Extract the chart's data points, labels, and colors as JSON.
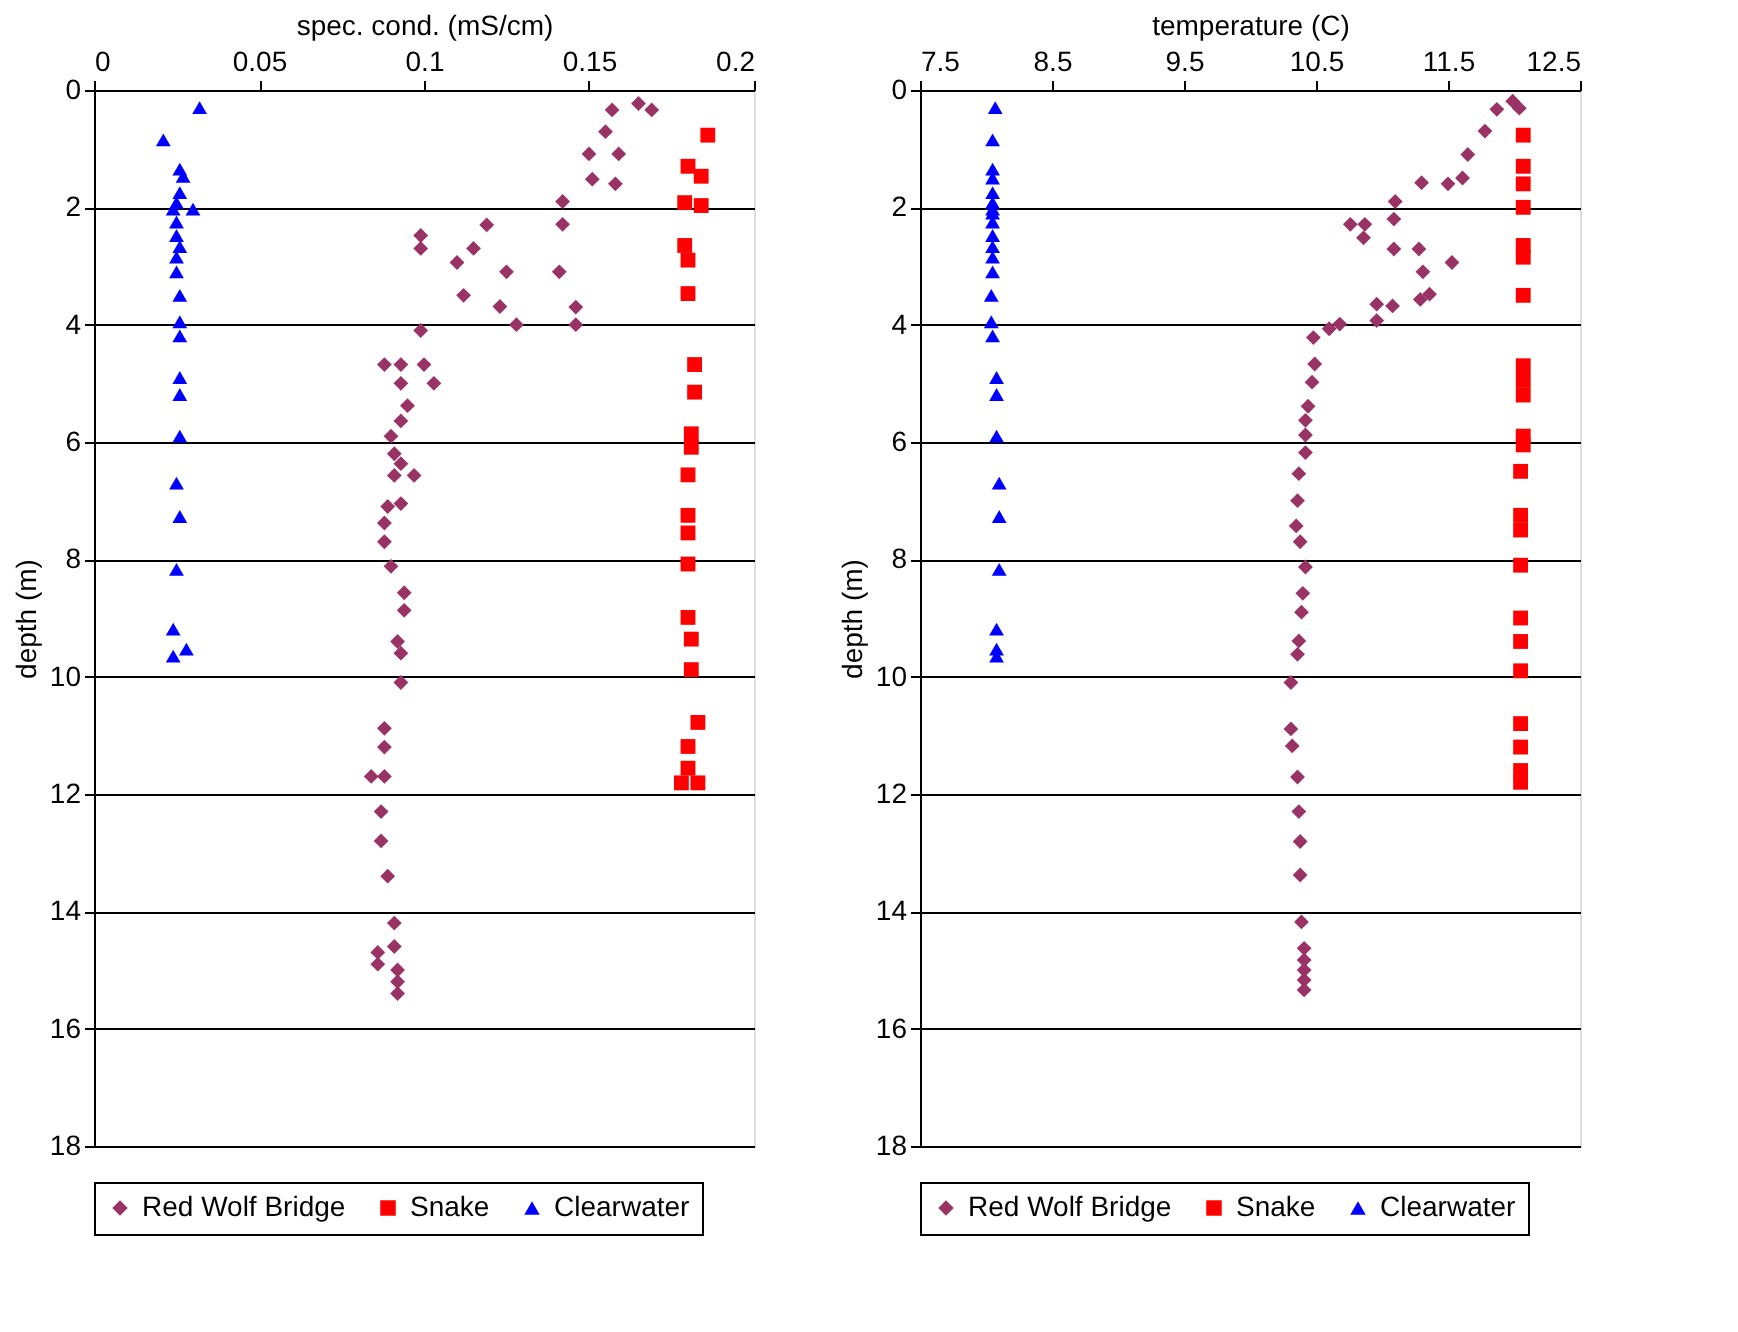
{
  "chart_data": [
    {
      "type": "scatter",
      "xlabel": "spec. cond. (mS/cm)",
      "ylabel": "depth (m)",
      "xlim": [
        0,
        0.2
      ],
      "xticks": [
        0,
        0.05,
        0.1,
        0.15,
        0.2
      ],
      "ylim": [
        18,
        0
      ],
      "yticks": [
        0,
        2,
        4,
        6,
        8,
        10,
        12,
        14,
        16,
        18
      ],
      "grid": "y",
      "legend": "bottom",
      "series": [
        {
          "name": "Red Wolf Bridge",
          "color": "#993366",
          "marker": "diamond",
          "x": [
            0.165,
            0.157,
            0.169,
            0.155,
            0.15,
            0.159,
            0.151,
            0.158,
            0.142,
            0.142,
            0.119,
            0.099,
            0.099,
            0.115,
            0.11,
            0.125,
            0.141,
            0.112,
            0.123,
            0.128,
            0.146,
            0.146,
            0.099,
            0.088,
            0.093,
            0.1,
            0.093,
            0.103,
            0.095,
            0.093,
            0.09,
            0.091,
            0.093,
            0.097,
            0.091,
            0.089,
            0.093,
            0.088,
            0.088,
            0.09,
            0.094,
            0.094,
            0.092,
            0.093,
            0.093,
            0.088,
            0.088,
            0.084,
            0.088,
            0.087,
            0.087,
            0.089,
            0.091,
            0.086,
            0.091,
            0.086,
            0.092,
            0.092,
            0.092
          ],
          "values": [
            0.23,
            0.34,
            0.34,
            0.71,
            1.09,
            1.09,
            1.52,
            1.6,
            1.9,
            2.29,
            2.3,
            2.48,
            2.7,
            2.7,
            2.94,
            3.1,
            3.1,
            3.5,
            3.69,
            4.0,
            3.7,
            4.0,
            4.1,
            4.68,
            4.68,
            4.68,
            5.0,
            5.0,
            5.38,
            5.64,
            5.9,
            6.2,
            6.37,
            6.57,
            6.57,
            7.1,
            7.05,
            7.38,
            7.7,
            8.12,
            8.57,
            8.87,
            9.4,
            9.6,
            10.1,
            10.88,
            11.2,
            11.7,
            11.7,
            12.3,
            12.8,
            13.4,
            14.2,
            14.7,
            14.6,
            14.9,
            15.0,
            15.2,
            15.4
          ]
        },
        {
          "name": "Snake",
          "color": "#ff0000",
          "marker": "square",
          "x": [
            0.186,
            0.18,
            0.184,
            0.179,
            0.184,
            0.179,
            0.18,
            0.18,
            0.182,
            0.182,
            0.181,
            0.181,
            0.18,
            0.18,
            0.18,
            0.18,
            0.18,
            0.181,
            0.181,
            0.183,
            0.18,
            0.18,
            0.178,
            0.183
          ],
          "values": [
            0.77,
            1.3,
            1.47,
            1.92,
            1.97,
            2.65,
            2.9,
            3.47,
            4.68,
            5.15,
            5.86,
            6.09,
            6.56,
            7.25,
            7.55,
            8.08,
            8.99,
            9.36,
            9.88,
            10.78,
            11.19,
            11.56,
            11.81,
            11.81
          ]
        },
        {
          "name": "Clearwater",
          "color": "#0000ff",
          "marker": "triangle",
          "x": [
            0.032,
            0.021,
            0.026,
            0.027,
            0.026,
            0.025,
            0.03,
            0.024,
            0.025,
            0.025,
            0.026,
            0.025,
            0.025,
            0.026,
            0.026,
            0.026,
            0.026,
            0.026,
            0.026,
            0.025,
            0.026,
            0.025,
            0.024,
            0.028,
            0.024
          ],
          "values": [
            0.3,
            0.85,
            1.35,
            1.47,
            1.75,
            1.92,
            2.03,
            2.03,
            2.25,
            2.48,
            2.67,
            2.85,
            3.1,
            3.5,
            3.95,
            4.19,
            4.9,
            5.19,
            5.9,
            6.7,
            7.27,
            8.17,
            9.19,
            9.53,
            9.65
          ]
        }
      ]
    },
    {
      "type": "scatter",
      "xlabel": "temperature (C)",
      "ylabel": "depth (m)",
      "xlim": [
        7.5,
        12.5
      ],
      "xticks": [
        7.5,
        8.5,
        9.5,
        10.5,
        11.5,
        12.5
      ],
      "ylim": [
        18,
        0
      ],
      "yticks": [
        0,
        2,
        4,
        6,
        8,
        10,
        12,
        14,
        16,
        18
      ],
      "grid": "y",
      "legend": "bottom",
      "series": [
        {
          "name": "Red Wolf Bridge",
          "color": "#993366",
          "marker": "diamond",
          "x": [
            11.99,
            11.87,
            12.04,
            11.78,
            11.65,
            11.61,
            11.5,
            11.3,
            11.1,
            11.09,
            10.76,
            10.87,
            10.86,
            11.09,
            11.28,
            11.31,
            11.53,
            11.29,
            11.36,
            10.96,
            11.08,
            10.96,
            10.68,
            10.6,
            10.48,
            10.49,
            10.47,
            10.44,
            10.42,
            10.42,
            10.42,
            10.37,
            10.36,
            10.35,
            10.38,
            10.42,
            10.4,
            10.39,
            10.37,
            10.36,
            10.31,
            10.31,
            10.32,
            10.36,
            10.37,
            10.38,
            10.38,
            10.39,
            10.41,
            10.41,
            10.41,
            10.41,
            10.41
          ],
          "values": [
            0.19,
            0.33,
            0.31,
            0.7,
            1.1,
            1.5,
            1.6,
            1.58,
            1.9,
            2.2,
            2.29,
            2.29,
            2.52,
            2.71,
            2.71,
            3.1,
            2.94,
            3.57,
            3.48,
            3.65,
            3.68,
            3.93,
            3.99,
            4.07,
            4.22,
            4.67,
            4.98,
            5.39,
            5.63,
            5.88,
            6.18,
            6.54,
            7.0,
            7.43,
            7.7,
            8.13,
            8.58,
            8.9,
            9.39,
            9.62,
            10.1,
            10.89,
            11.18,
            11.71,
            12.3,
            12.81,
            13.38,
            14.18,
            14.63,
            14.83,
            15.0,
            15.17,
            15.34
          ]
        },
        {
          "name": "Snake",
          "color": "#ff0000",
          "marker": "square",
          "x": [
            12.07,
            12.07,
            12.07,
            12.07,
            12.07,
            12.07,
            12.07,
            12.07,
            12.07,
            12.07,
            12.07,
            12.07,
            12.05,
            12.05,
            12.05,
            12.05,
            12.05,
            12.05,
            12.05,
            12.05,
            12.05,
            12.05,
            12.05
          ],
          "values": [
            0.77,
            1.3,
            1.6,
            2.0,
            2.65,
            2.85,
            3.5,
            4.7,
            4.95,
            5.2,
            5.9,
            6.05,
            6.5,
            7.25,
            7.5,
            8.1,
            9.0,
            9.4,
            9.9,
            10.8,
            11.2,
            11.6,
            11.8
          ]
        },
        {
          "name": "Clearwater",
          "color": "#0000ff",
          "marker": "triangle",
          "x": [
            8.07,
            8.05,
            8.05,
            8.05,
            8.05,
            8.05,
            8.05,
            8.05,
            8.05,
            8.05,
            8.05,
            8.05,
            8.05,
            8.04,
            8.04,
            8.05,
            8.08,
            8.08,
            8.08,
            8.1,
            8.1,
            8.1,
            8.08,
            8.08,
            8.08
          ],
          "values": [
            0.3,
            0.85,
            1.35,
            1.5,
            1.75,
            1.92,
            2.03,
            2.1,
            2.25,
            2.48,
            2.67,
            2.85,
            3.1,
            3.5,
            3.95,
            4.19,
            4.9,
            5.19,
            5.9,
            6.7,
            7.27,
            8.17,
            9.19,
            9.53,
            9.65
          ]
        }
      ]
    }
  ]
}
